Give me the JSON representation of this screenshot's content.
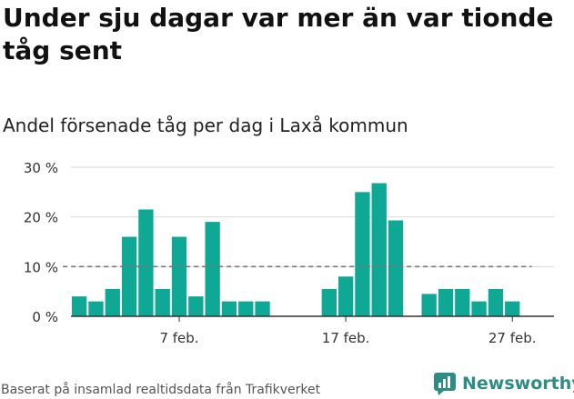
{
  "title": "Under sju dagar var mer än var tionde tåg sent",
  "subtitle": "Andel försenade tåg per dag i Laxå kommun",
  "source": "Baserat på insamlad realtidsdata från Trafikverket",
  "brand": {
    "name": "Newsworthy",
    "color": "#2e8c85"
  },
  "chart_data": {
    "type": "bar",
    "bar_color": "#0fa894",
    "reference_line": {
      "value": 10,
      "style": "dashed",
      "color": "#777777"
    },
    "y_ticks": [
      "0 %",
      "10 %",
      "20 %",
      "30 %"
    ],
    "y_tick_values": [
      0,
      10,
      20,
      30
    ],
    "x_tick_labels": [
      "7 feb.",
      "17 feb.",
      "27 feb."
    ],
    "x_tick_days": [
      7,
      17,
      27
    ],
    "ylim": [
      0,
      30
    ],
    "grid": true,
    "days": [
      1,
      2,
      3,
      4,
      5,
      6,
      7,
      8,
      9,
      10,
      11,
      12,
      13,
      14,
      15,
      16,
      17,
      18,
      19,
      20,
      21,
      22,
      23,
      24,
      25,
      26,
      27,
      28,
      29
    ],
    "values": [
      4,
      3,
      5.5,
      16,
      21.5,
      5.5,
      16,
      4,
      19,
      3,
      3,
      3,
      null,
      null,
      null,
      5.5,
      8,
      25,
      26.8,
      19.3,
      null,
      4.5,
      5.5,
      5.5,
      3,
      5.5,
      3,
      null,
      null
    ]
  }
}
